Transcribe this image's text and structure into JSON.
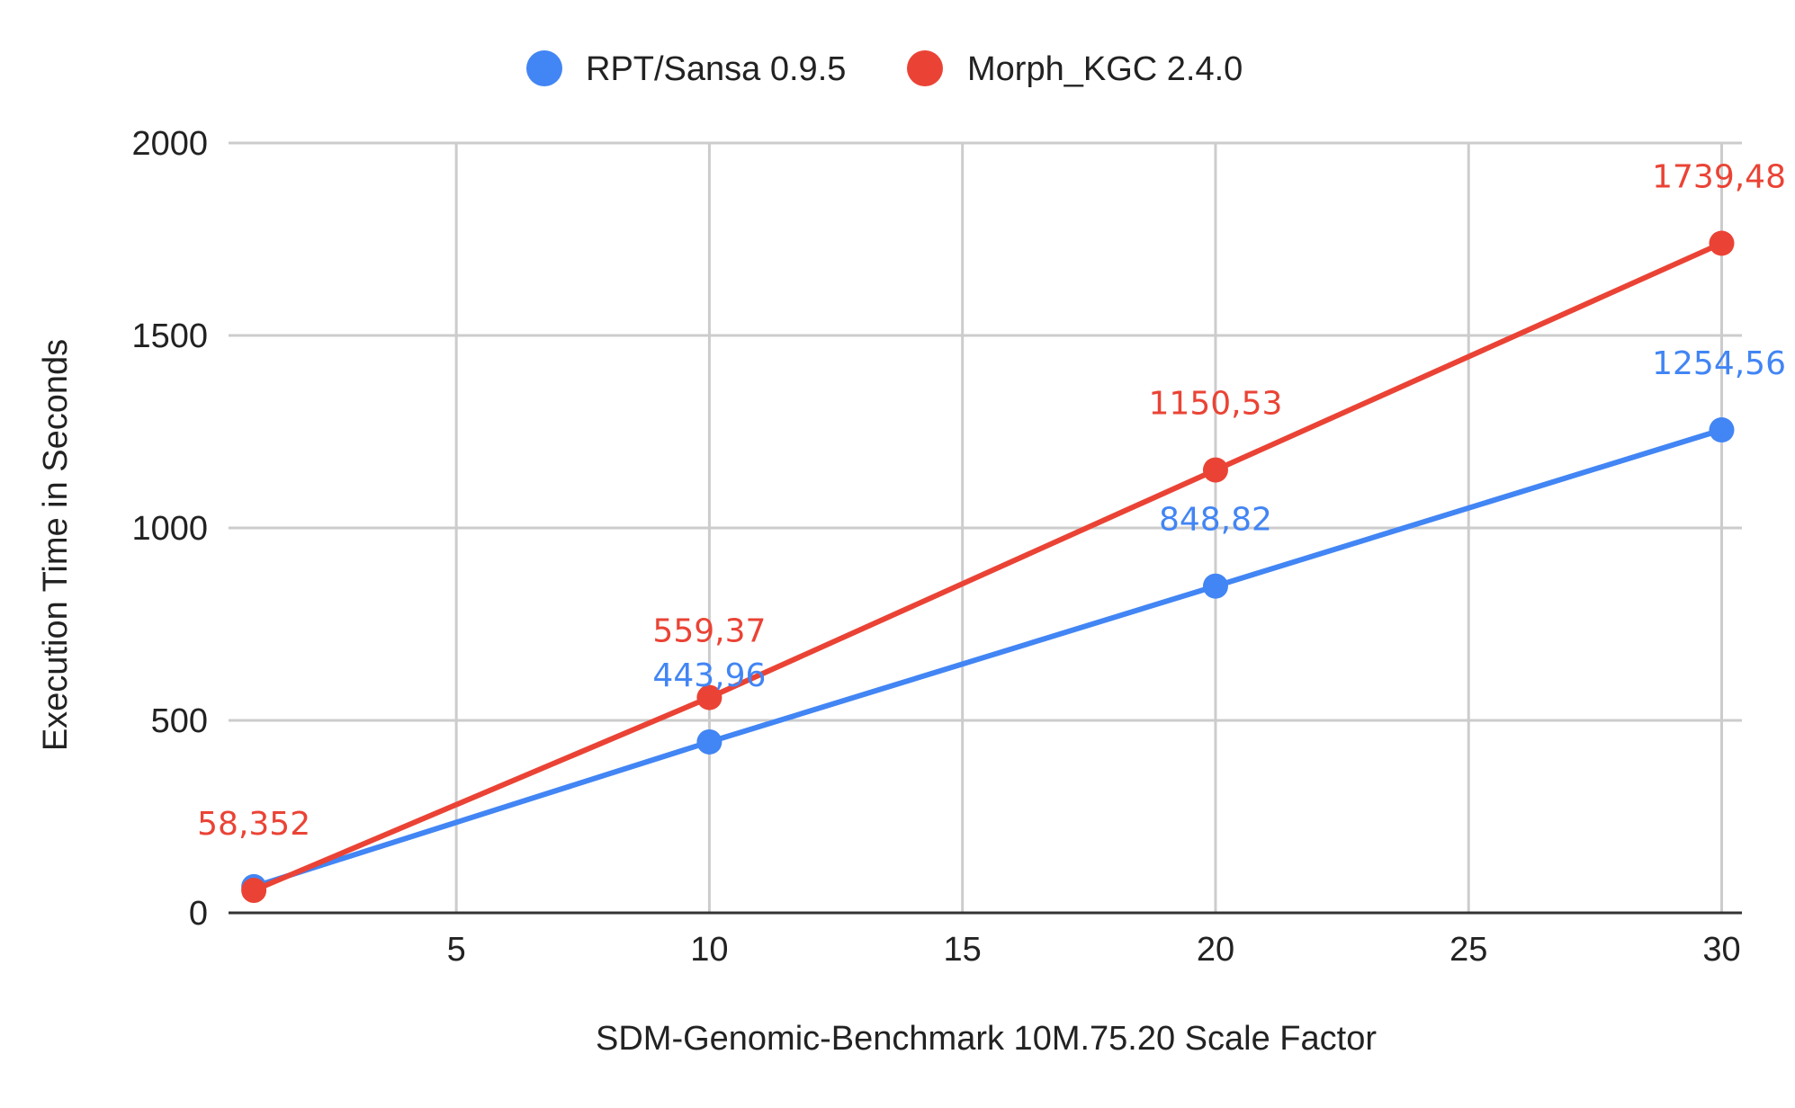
{
  "chart_data": {
    "type": "line",
    "title": "",
    "xlabel": "SDM-Genomic-Benchmark 10M.75.20 Scale Factor",
    "ylabel": "Execution Time in Seconds",
    "xlim": [
      0.5,
      30.4
    ],
    "ylim": [
      0,
      2000
    ],
    "x_ticks": [
      5,
      10,
      15,
      20,
      25,
      30
    ],
    "y_ticks": [
      0,
      500,
      1000,
      1500,
      2000
    ],
    "grid": true,
    "legend_position": "top",
    "series": [
      {
        "name": "RPT/Sansa 0.9.5",
        "color": "#4285F4",
        "points": [
          {
            "x": 1,
            "y": 68,
            "label": ""
          },
          {
            "x": 10,
            "y": 443.96,
            "label": "443,96"
          },
          {
            "x": 20,
            "y": 848.82,
            "label": "848,82"
          },
          {
            "x": 30,
            "y": 1254.56,
            "label": "1254,56"
          }
        ]
      },
      {
        "name": "Morph_KGC 2.4.0",
        "color": "#EA4335",
        "points": [
          {
            "x": 1,
            "y": 58.352,
            "label": "58,352"
          },
          {
            "x": 10,
            "y": 559.37,
            "label": "559,37"
          },
          {
            "x": 20,
            "y": 1150.53,
            "label": "1150,53"
          },
          {
            "x": 30,
            "y": 1739.48,
            "label": "1739,48"
          }
        ]
      }
    ]
  }
}
